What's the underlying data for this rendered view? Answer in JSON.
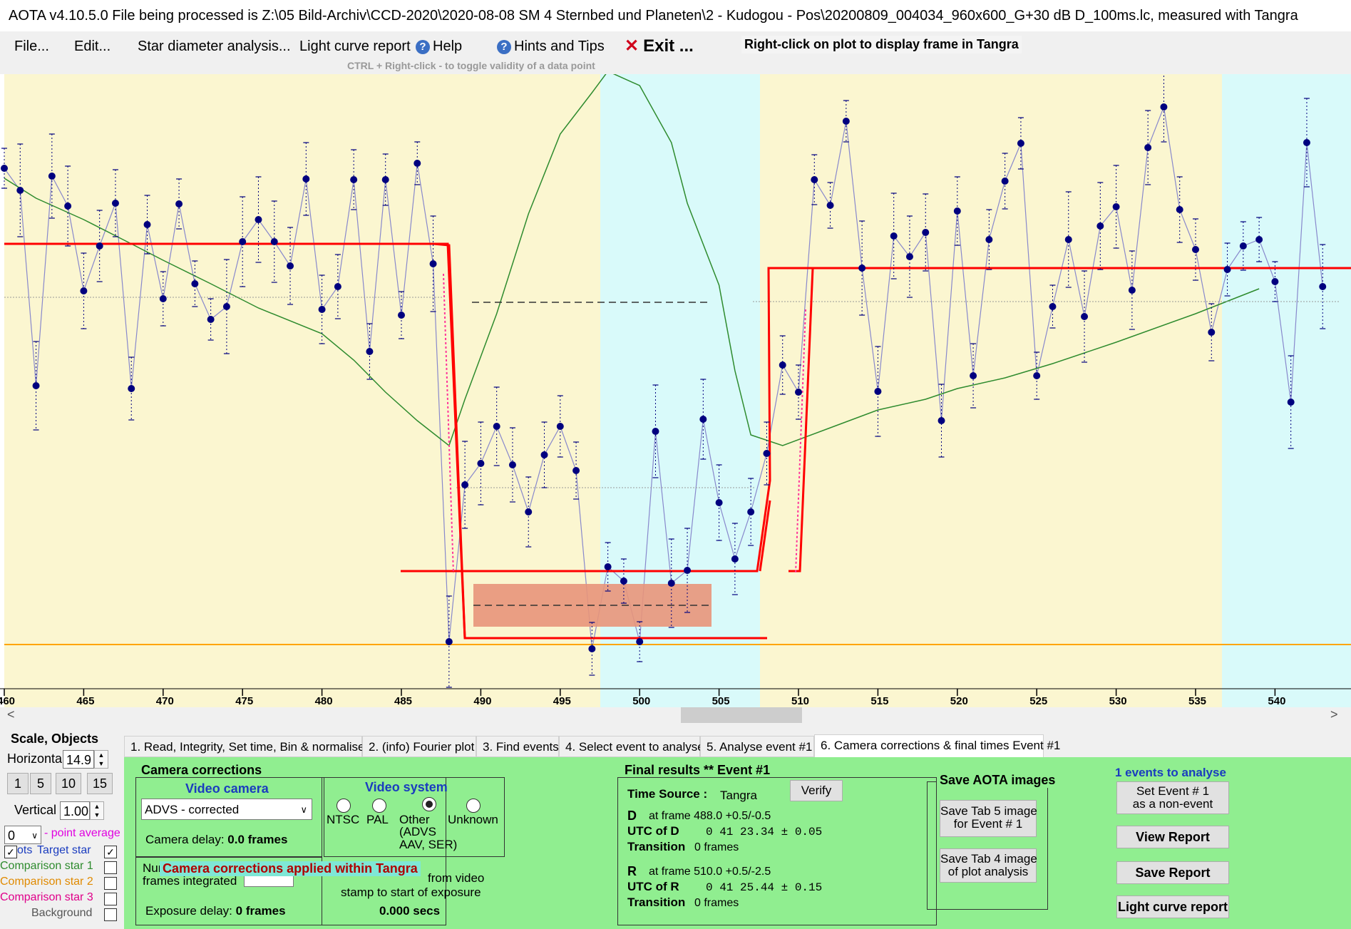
{
  "window": {
    "title": "AOTA v4.10.5.0    File being processed is Z:\\05 Bild-Archiv\\CCD-2020\\2020-08-08 SM 4 Sternbed und Planeten\\2 - Kudogou - Pos\\20200809_004034_960x600_G+30 dB D_100ms.lc, measured with Tangra"
  },
  "menu": {
    "file": "File...",
    "edit": "Edit...",
    "star_diameter": "Star diameter analysis...",
    "light_curve": "Light curve report",
    "help": "Help",
    "hints": "Hints and Tips",
    "exit": "Exit ...",
    "right_click_note": "Right-click on plot to display frame in Tangra",
    "ctrl_note": "CTRL + Right-click  -  to toggle validity of a data point"
  },
  "plot": {
    "x_ticks": [
      "460",
      "465",
      "470",
      "475",
      "480",
      "485",
      "490",
      "495",
      "500",
      "505",
      "510",
      "515",
      "520",
      "525",
      "530",
      "535",
      "540"
    ],
    "colors": {
      "yellow_bg": "#fbf6d0",
      "cyan_bg": "#d9fafa",
      "model": "#ff0000",
      "data": "#00007f",
      "comparison": "#2e8b2e",
      "baseline": "#ffa500",
      "confidence": "#e8957a"
    }
  },
  "chart_data": {
    "type": "line",
    "xlim": [
      459.8,
      543.5
    ],
    "frames": [
      460,
      461,
      462,
      463,
      464,
      465,
      466,
      467,
      468,
      469,
      470,
      471,
      472,
      473,
      474,
      475,
      476,
      477,
      478,
      479,
      480,
      481,
      482,
      483,
      484,
      485,
      486,
      487,
      488,
      489,
      490,
      491,
      492,
      493,
      494,
      495,
      496,
      497,
      498,
      499,
      500,
      501,
      502,
      503,
      504,
      505,
      506,
      507,
      508,
      509,
      510,
      511,
      512,
      513,
      514,
      515,
      516,
      517,
      518,
      519,
      520,
      521,
      522,
      523,
      524,
      525,
      526,
      527,
      528,
      529,
      530,
      531,
      532,
      533,
      534,
      535,
      536,
      537,
      538,
      539,
      540,
      541,
      542,
      543
    ],
    "series": [
      {
        "values": [
          236,
          267,
          541,
          247,
          289,
          408,
          345,
          285,
          545,
          315,
          419,
          286,
          398,
          448,
          430,
          339,
          308,
          339,
          373,
          251,
          434,
          402,
          252,
          493,
          252,
          442,
          229,
          370,
          900,
          680,
          650,
          598,
          652,
          718,
          638,
          598,
          660,
          910,
          795,
          815,
          900,
          605,
          818,
          800,
          588,
          705,
          784,
          718,
          636,
          512,
          550,
          252,
          288,
          170,
          376,
          549,
          331,
          360,
          326,
          590,
          296,
          527,
          336,
          254,
          201,
          527,
          430,
          336,
          444,
          317,
          290,
          407,
          207,
          150,
          294,
          350,
          466,
          378,
          345,
          336,
          395,
          564,
          200,
          402
        ]
      }
    ]
  },
  "scroll": {
    "left": "<",
    "right": ">"
  },
  "left_panel": {
    "scale_objects": "Scale,  Objects",
    "horizontal": "Horizontal",
    "horizontal_value": "14.9",
    "btn1": "1",
    "btn5": "5",
    "btn10": "10",
    "btn15": "15",
    "vertical": "Vertical",
    "vertical_value": "1.00",
    "point_avg_value": "0",
    "point_avg_label": "- point average",
    "plots": "ots",
    "target_star": "Target star",
    "comp1": "Comparison star 1",
    "comp2": "Comparison star 2",
    "comp3": "Comparison star 3",
    "background": "Background"
  },
  "tabs": [
    "1.  Read, Integrity, Set time, Bin & normalise",
    "2. (info)  Fourier plot",
    "3. Find events",
    "4. Select event to analyse",
    "5. Analyse event #1",
    "6. Camera corrections & final times Event #1"
  ],
  "camera": {
    "title": "Camera corrections",
    "video_camera": "Video camera",
    "camera_select": "ADVS - corrected",
    "camera_delay_label": "Camera delay: ",
    "camera_delay_value": "0.0 frames",
    "video_system": "Video system",
    "ntsc": "NTSC",
    "pal": "PAL",
    "other": "Other",
    "other_detail": "(ADVS\nAAV, SER)",
    "unknown": "Unknown",
    "frames_integrated_a": "Num",
    "frames_integrated_b": "frames integrated",
    "applied_overlay": "Camera corrections applied within Tangra",
    "from_video": "from video",
    "stamp": "stamp to start of exposure",
    "offset": "0.000 secs",
    "exposure_delay_label": "Exposure delay: ",
    "exposure_delay_value": "0 frames"
  },
  "final": {
    "title": "Final results  **  Event #1",
    "verify": "Verify",
    "time_source_label": "Time Source :",
    "time_source": "Tangra",
    "d_label": "D",
    "d_frame": "at frame 488.0  +0.5/-0.5",
    "utc_d_label": "UTC of D",
    "utc_d": "0 41 23.34  ± 0.05",
    "transition1_label": "Transition",
    "transition1": "0 frames",
    "r_label": "R",
    "r_frame": "at frame 510.0  +0.5/-2.5",
    "utc_r_label": "UTC of R",
    "utc_r": "0 41 25.44  ± 0.15",
    "transition2_label": "Transition",
    "transition2": "0 frames"
  },
  "save": {
    "title": "Save AOTA images",
    "tab5": "Save Tab 5 image\nfor Event # 1",
    "tab4": "Save Tab 4 image\nof plot analysis"
  },
  "events": {
    "count_label": "1  events to analyse",
    "set_event": "Set Event # 1\nas a non-event",
    "view_report": "View Report",
    "save_report": "Save Report",
    "light_curve_report": "Light curve report"
  }
}
